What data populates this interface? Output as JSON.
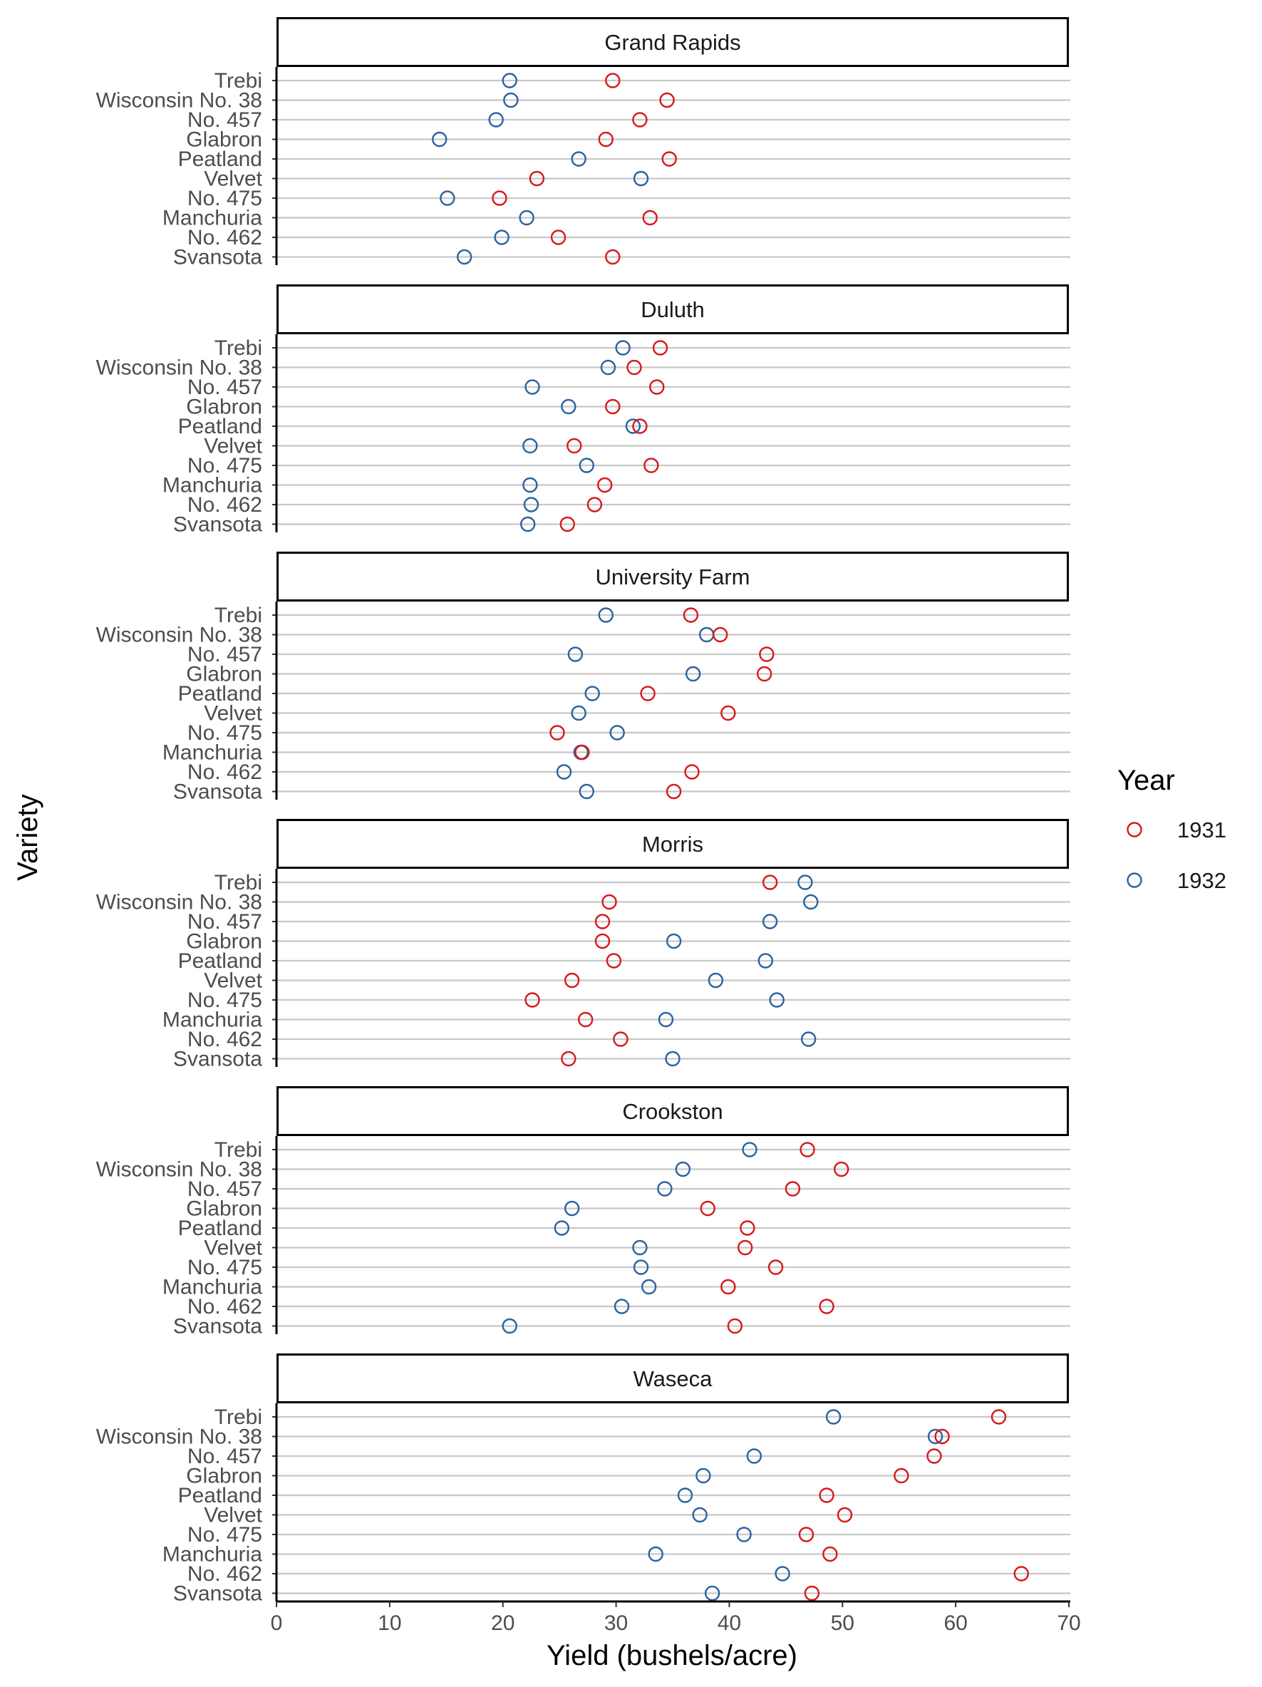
{
  "chart_data": {
    "type": "scatter",
    "xlabel": "Yield (bushels/acre)",
    "ylabel": "Variety",
    "xlim": [
      0,
      70
    ],
    "xticks": [
      0,
      10,
      20,
      30,
      40,
      50,
      60,
      70
    ],
    "grid": "horizontal",
    "legend": {
      "title": "Year",
      "position": "right",
      "entries": [
        {
          "name": "1931",
          "color": "#d7191c"
        },
        {
          "name": "1932",
          "color": "#2c63a0"
        }
      ]
    },
    "varieties": [
      "Trebi",
      "Wisconsin No. 38",
      "No. 457",
      "Glabron",
      "Peatland",
      "Velvet",
      "No. 475",
      "Manchuria",
      "No. 462",
      "Svansota"
    ],
    "panels": [
      {
        "site": "Grand Rapids",
        "y1931": [
          29.7,
          34.5,
          32.1,
          29.1,
          34.7,
          23.0,
          19.7,
          33.0,
          24.9,
          29.7
        ],
        "y1932": [
          20.6,
          20.7,
          19.4,
          14.4,
          26.7,
          32.2,
          15.1,
          22.1,
          19.9,
          16.6
        ]
      },
      {
        "site": "Duluth",
        "y1931": [
          33.9,
          31.6,
          33.6,
          29.7,
          32.1,
          26.3,
          33.1,
          29.0,
          28.1,
          25.7
        ],
        "y1932": [
          30.6,
          29.3,
          22.6,
          25.8,
          31.5,
          22.4,
          27.4,
          22.4,
          22.5,
          22.2
        ]
      },
      {
        "site": "University Farm",
        "y1931": [
          36.6,
          39.2,
          43.3,
          43.1,
          32.8,
          39.9,
          24.8,
          27.0,
          36.7,
          35.1
        ],
        "y1932": [
          29.1,
          38.0,
          26.4,
          36.8,
          27.9,
          26.7,
          30.1,
          26.9,
          25.4,
          27.4
        ]
      },
      {
        "site": "Morris",
        "y1931": [
          43.6,
          29.4,
          28.8,
          28.8,
          29.8,
          26.1,
          22.6,
          27.3,
          30.4,
          25.8
        ],
        "y1932": [
          46.7,
          47.2,
          43.6,
          35.1,
          43.2,
          38.8,
          44.2,
          34.4,
          47.0,
          35.0
        ]
      },
      {
        "site": "Crookston",
        "y1931": [
          46.9,
          49.9,
          45.6,
          38.1,
          41.6,
          41.4,
          44.1,
          39.9,
          48.6,
          40.5
        ],
        "y1932": [
          41.8,
          35.9,
          34.3,
          26.1,
          25.2,
          32.1,
          32.2,
          32.9,
          30.5,
          20.6
        ]
      },
      {
        "site": "Waseca",
        "y1931": [
          63.8,
          58.8,
          58.1,
          55.2,
          48.6,
          50.2,
          46.8,
          48.9,
          65.8,
          47.3
        ],
        "y1932": [
          49.2,
          58.2,
          42.2,
          37.7,
          36.1,
          37.4,
          41.3,
          33.5,
          44.7,
          38.5
        ]
      }
    ]
  }
}
